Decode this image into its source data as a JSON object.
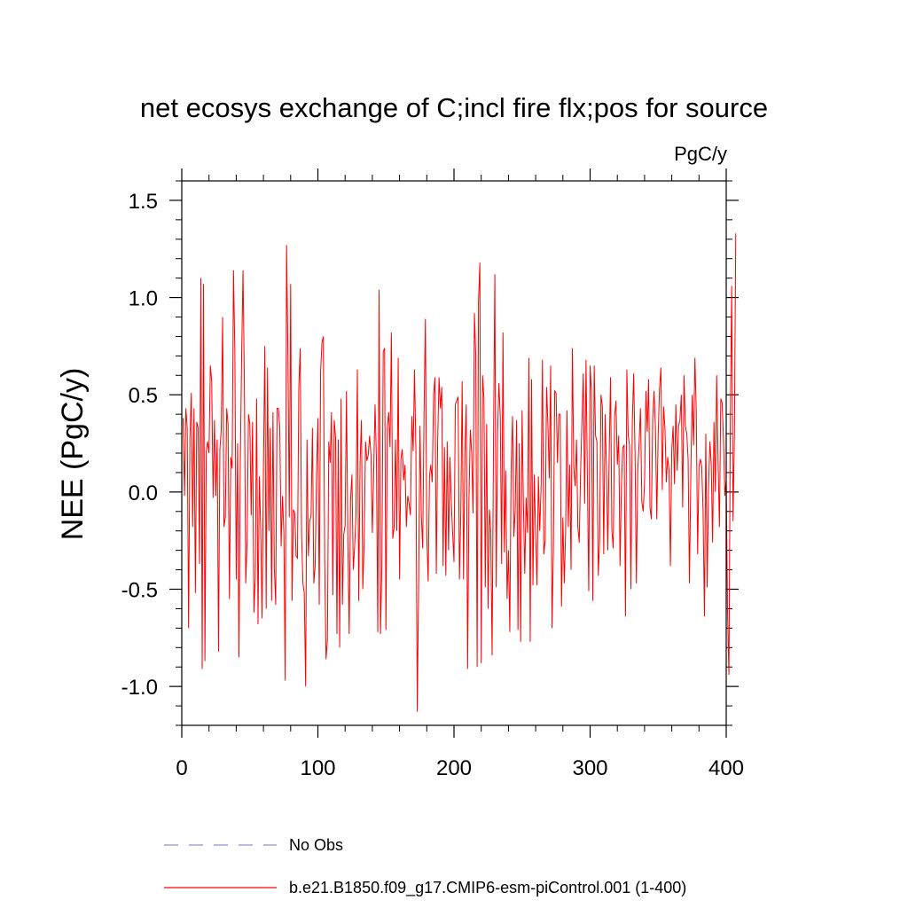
{
  "chart_data": {
    "type": "line",
    "title": "net ecosys exchange of C;incl fire flx;pos for source",
    "units_label": "PgC/y",
    "xlabel": "",
    "ylabel": "NEE  (PgC/y)",
    "xlim": [
      0,
      400
    ],
    "ylim": [
      -1.2,
      1.6
    ],
    "x_ticks": [
      0,
      100,
      200,
      300,
      400
    ],
    "x_tick_labels": [
      "0",
      "100",
      "200",
      "300",
      "400"
    ],
    "x_minor_step": 20,
    "y_ticks": [
      -1.0,
      -0.5,
      0.0,
      0.5,
      1.0,
      1.5
    ],
    "y_tick_labels": [
      "-1.0",
      "-0.5",
      "0.0",
      "0.5",
      "1.0",
      "1.5"
    ],
    "y_minor_step": 0.1,
    "grid": false,
    "legend_position": "bottom",
    "legend": [
      {
        "name": "No Obs",
        "style": "dashed",
        "color": "#8f8fd6"
      },
      {
        "name": "b.e21.B1850.f09_g17.CMIP6-esm-piControl.001 (1-400)",
        "style": "solid",
        "color": "#ff0000"
      }
    ],
    "series": [
      {
        "name": "b.e21.B1850.f09_g17.CMIP6-esm-piControl.001 (1-400)",
        "color": "#ff0000",
        "x_start": 1,
        "x_step": 1,
        "values": [
          0.38,
          -0.02,
          0.43,
          0.33,
          -0.7,
          0.28,
          0.51,
          -0.18,
          0.43,
          -0.52,
          0.36,
          0.33,
          -0.37,
          1.1,
          -0.91,
          1.07,
          -0.87,
          0.21,
          0.26,
          0.2,
          0.65,
          0.57,
          -0.03,
          0.37,
          -0.02,
          0.27,
          -0.82,
          0.22,
          0.32,
          0.9,
          -0.18,
          -0.13,
          0.43,
          0.35,
          -0.55,
          0.18,
          0.12,
          1.14,
          0.72,
          -0.45,
          0.25,
          -0.85,
          0.15,
          0.71,
          1.14,
          0.55,
          -0.47,
          -0.25,
          0.4,
          0.35,
          -0.12,
          0.36,
          -0.62,
          -0.44,
          0.48,
          -0.68,
          0.08,
          -0.19,
          -0.65,
          0.12,
          0.75,
          -0.6,
          0.64,
          -0.2,
          0.33,
          -0.56,
          0.41,
          -0.39,
          -0.58,
          0.43,
          0.43,
          0.33,
          -0.28,
          -0.02,
          -0.21,
          -0.97,
          1.27,
          0.7,
          -0.13,
          1.07,
          -0.56,
          -0.09,
          -0.11,
          -0.33,
          -0.34,
          0.54,
          0.74,
          -0.21,
          -0.47,
          -0.52,
          -1.0,
          0.27,
          -0.33,
          -0.15,
          -0.12,
          0.33,
          -0.47,
          -0.38,
          0.09,
          0.38,
          -0.58,
          0.62,
          0.77,
          0.8,
          -0.36,
          -0.86,
          -0.76,
          0.26,
          0.15,
          0.41,
          -0.53,
          0.37,
          0.28,
          -0.73,
          0.27,
          -0.8,
          0.48,
          -0.58,
          -0.22,
          -0.17,
          0.52,
          -0.25,
          -0.73,
          -0.04,
          0.09,
          -0.4,
          -0.28,
          -0.12,
          0.63,
          -0.56,
          0.15,
          0.37,
          -0.5,
          -0.26,
          0.26,
          0.16,
          0.19,
          0.29,
          0.19,
          -0.21,
          0.1,
          0.45,
          0.17,
          -0.72,
          1.04,
          -0.73,
          -0.38,
          0.72,
          0.74,
          -0.71,
          0.33,
          0.41,
          0.23,
          0.82,
          -0.24,
          -0.18,
          0.27,
          -0.2,
          0.69,
          -0.45,
          0.17,
          0.22,
          0.06,
          0.14,
          -0.18,
          -0.02,
          -0.06,
          -0.12,
          0.39,
          0.21,
          0.63,
          0.22,
          -1.13,
          -0.48,
          0.34,
          -0.12,
          -0.29,
          0.41,
          0.89,
          -0.22,
          -0.46,
          0.08,
          0.14,
          0.05,
          0.5,
          0.59,
          -0.42,
          0.26,
          0.59,
          0.43,
          0.54,
          -0.38,
          0.23,
          -0.43,
          0.26,
          -0.3,
          0.18,
          -0.05,
          -0.21,
          -0.36,
          0.45,
          0.47,
          0.49,
          -0.45,
          -0.11,
          0.57,
          -0.45,
          0.2,
          0.45,
          -0.91,
          -0.04,
          0.32,
          0.2,
          -0.11,
          0.92,
          0.7,
          -0.9,
          0.98,
          1.18,
          -0.88,
          0.6,
          0.48,
          -0.49,
          0.35,
          -0.6,
          -0.09,
          -0.2,
          -0.84,
          0.22,
          1.12,
          -0.49,
          0.29,
          0.56,
          0.39,
          -0.37,
          0.82,
          -0.31,
          0.11,
          -0.55,
          -0.3,
          -0.72,
          0.14,
          0.39,
          -0.23,
          -0.09,
          0.37,
          -0.71,
          0.25,
          -0.77,
          0.42,
          -0.06,
          -0.42,
          -0.03,
          -0.21,
          0.69,
          -0.77,
          0.58,
          -0.48,
          0.09,
          -0.22,
          -0.48,
          0.08,
          -0.2,
          0.03,
          0.68,
          -0.32,
          -0.25,
          0.54,
          0.35,
          0.07,
          0.65,
          -0.7,
          -0.3,
          0.52,
          0.51,
          0.15,
          0.4,
          0.4,
          -0.59,
          -0.13,
          -0.47,
          -0.21,
          0.42,
          -0.18,
          0.14,
          -0.4,
          0.74,
          0.13,
          0.03,
          0.27,
          -0.18,
          -0.26,
          0.1,
          0.36,
          0.61,
          -0.06,
          0.68,
          0.07,
          -0.51,
          0.65,
          0.51,
          -0.56,
          0.65,
          0.29,
          0.26,
          -0.43,
          -0.24,
          0.5,
          0.44,
          -0.32,
          0.4,
          0.12,
          -0.3,
          0.18,
          0.59,
          -0.2,
          -0.29,
          0.39,
          0.47,
          0.14,
          0.29,
          -0.38,
          0.03,
          0.23,
          0.24,
          -0.64,
          0.63,
          0.29,
          0.24,
          -0.5,
          0.36,
          0.61,
          0.2,
          -0.47,
          0.11,
          0.25,
          0.43,
          -0.05,
          -0.1,
          0.05,
          0.52,
          0.31,
          0.58,
          -0.08,
          -0.14,
          0.38,
          0.52,
          0.33,
          -0.14,
          0.29,
          0.53,
          0.64,
          0.01,
          0.44,
          0.33,
          0.05,
          0.18,
          0.11,
          -0.38,
          0.22,
          0.34,
          0.04,
          0.45,
          0.11,
          0.34,
          0.37,
          0.5,
          -0.08,
          0.6,
          0.34,
          0.3,
          0.17,
          -0.47,
          0.1,
          0.5,
          0.24,
          0.69,
          0.41,
          -0.32,
          0.13,
          0.17,
          0.13,
          -0.1,
          -0.64,
          0.3,
          -0.49,
          0.02,
          0.26,
          0.14,
          -0.26,
          0.36,
          0.0,
          0.6,
          0.17,
          -0.18,
          0.48,
          0.46,
          0.27,
          -0.02,
          0.06,
          -0.62,
          -0.94,
          0.34,
          1.06,
          -0.15,
          0.29,
          1.33
        ]
      }
    ]
  }
}
